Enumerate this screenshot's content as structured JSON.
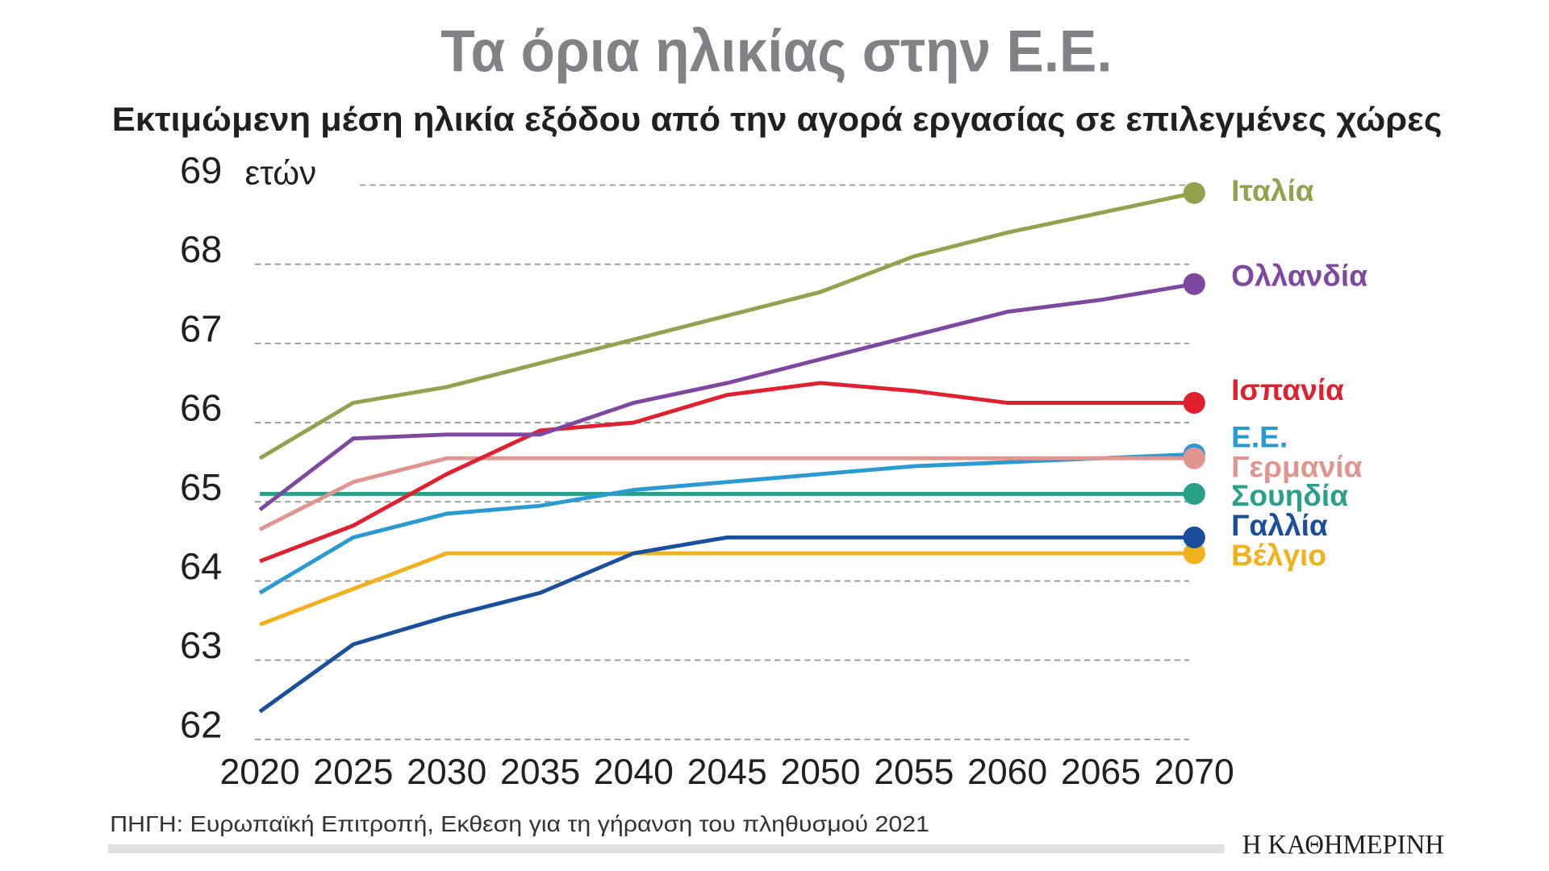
{
  "chart_data": {
    "type": "line",
    "title": "Τα όρια ηλικίας στην Ε.Ε.",
    "subtitle": "Εκτιμώμενη μέση ηλικία εξόδου από την αγορά εργασίας σε επιλεγμένες χώρες",
    "ylabel": "ετών",
    "xlabel": "",
    "x": [
      2020,
      2025,
      2030,
      2035,
      2040,
      2045,
      2050,
      2055,
      2060,
      2065,
      2070
    ],
    "ylim": [
      62,
      69
    ],
    "yticks": [
      62,
      63,
      64,
      65,
      66,
      67,
      68,
      69
    ],
    "grid": true,
    "grid_style": "dashed horizontal",
    "legend": "right, direct labels at line ends",
    "series": [
      {
        "name": "Ιταλία",
        "color": "#93a24f",
        "values": [
          65.55,
          66.25,
          66.45,
          66.75,
          67.05,
          67.35,
          67.65,
          68.1,
          68.4,
          68.65,
          68.9
        ]
      },
      {
        "name": "Ολλανδία",
        "color": "#7f48a0",
        "values": [
          64.9,
          65.8,
          65.85,
          65.85,
          66.25,
          66.5,
          66.8,
          67.1,
          67.4,
          67.55,
          67.75
        ]
      },
      {
        "name": "Ισπανία",
        "color": "#e0202f",
        "values": [
          64.25,
          64.7,
          65.35,
          65.9,
          66.0,
          66.35,
          66.5,
          66.4,
          66.25,
          66.25,
          66.25
        ]
      },
      {
        "name": "Ε.Ε.",
        "color": "#2a9ad3",
        "values": [
          63.85,
          64.55,
          64.85,
          64.95,
          65.15,
          65.25,
          65.35,
          65.45,
          65.5,
          65.55,
          65.6
        ]
      },
      {
        "name": "Γερμανία",
        "color": "#e09590",
        "values": [
          64.65,
          65.25,
          65.55,
          65.55,
          65.55,
          65.55,
          65.55,
          65.55,
          65.55,
          65.55,
          65.55
        ]
      },
      {
        "name": "Σουηδία",
        "color": "#2aa08a",
        "values": [
          65.1,
          65.1,
          65.1,
          65.1,
          65.1,
          65.1,
          65.1,
          65.1,
          65.1,
          65.1,
          65.1
        ]
      },
      {
        "name": "Γαλλία",
        "color": "#1a4f9e",
        "values": [
          62.35,
          63.2,
          63.55,
          63.85,
          64.35,
          64.55,
          64.55,
          64.55,
          64.55,
          64.55,
          64.55
        ]
      },
      {
        "name": "Βέλγιο",
        "color": "#f2b01c",
        "values": [
          63.45,
          63.9,
          64.35,
          64.35,
          64.35,
          64.35,
          64.35,
          64.35,
          64.35,
          64.35,
          64.35
        ]
      }
    ]
  },
  "source": "ΠΗΓΗ: Ευρωπαϊκή Επιτροπή, Εκθεση για τη γήρανση του πληθυσμού 2021",
  "logo": "Η ΚΑΘΗΜΕΡΙΝΗ"
}
